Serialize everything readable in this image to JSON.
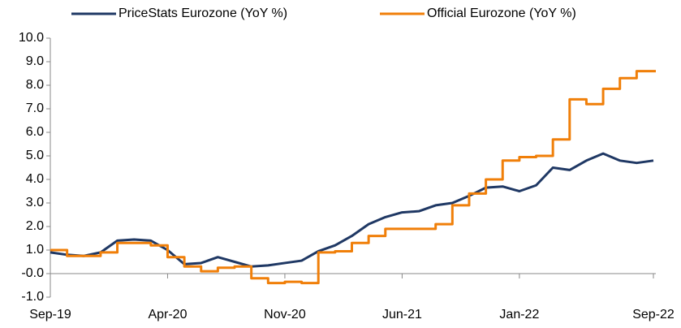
{
  "chart_data": {
    "type": "line",
    "categories": [
      "Sep-19",
      null,
      null,
      null,
      null,
      null,
      null,
      "Apr-20",
      null,
      null,
      null,
      null,
      null,
      null,
      "Nov-20",
      null,
      null,
      null,
      null,
      null,
      null,
      "Jun-21",
      null,
      null,
      null,
      null,
      null,
      null,
      "Jan-22",
      null,
      null,
      null,
      null,
      null,
      null,
      null,
      "Sep-22"
    ],
    "series": [
      {
        "name": "PriceStats Eurozone (YoY %)",
        "color": "#1f3864",
        "drawstyle": "smooth",
        "values": [
          0.9,
          0.8,
          0.75,
          0.9,
          1.4,
          1.45,
          1.4,
          1.0,
          0.4,
          0.45,
          0.7,
          0.5,
          0.3,
          0.35,
          0.45,
          0.55,
          0.95,
          1.2,
          1.6,
          2.1,
          2.4,
          2.6,
          2.65,
          2.9,
          3.0,
          3.3,
          3.65,
          3.7,
          3.5,
          3.75,
          4.5,
          4.4,
          4.8,
          5.1,
          4.8,
          4.7,
          4.8
        ]
      },
      {
        "name": "Official Eurozone (YoY %)",
        "color": "#f07f09",
        "drawstyle": "steps-post",
        "values": [
          1.0,
          0.75,
          0.75,
          0.9,
          1.3,
          1.3,
          1.2,
          0.7,
          0.3,
          0.1,
          0.25,
          0.3,
          -0.2,
          -0.4,
          -0.35,
          -0.4,
          0.9,
          0.95,
          1.3,
          1.6,
          1.9,
          1.9,
          1.9,
          2.1,
          2.9,
          3.4,
          4.0,
          4.8,
          4.95,
          5.0,
          5.7,
          7.4,
          7.2,
          7.85,
          8.3,
          8.6,
          8.6
        ]
      }
    ],
    "ylim": [
      -1,
      10
    ],
    "yticks": [
      {
        "value": -1,
        "label": "-1.0"
      },
      {
        "value": 0,
        "label": "-0.0"
      },
      {
        "value": 1,
        "label": "1.0"
      },
      {
        "value": 2,
        "label": "2.0"
      },
      {
        "value": 3,
        "label": "3.0"
      },
      {
        "value": 4,
        "label": "4.0"
      },
      {
        "value": 5,
        "label": "5.0"
      },
      {
        "value": 6,
        "label": "6.0"
      },
      {
        "value": 7,
        "label": "7.0"
      },
      {
        "value": 8,
        "label": "8.0"
      },
      {
        "value": 9,
        "label": "9.0"
      },
      {
        "value": 10,
        "label": "10.0"
      }
    ],
    "grid": false,
    "legend": "top"
  }
}
